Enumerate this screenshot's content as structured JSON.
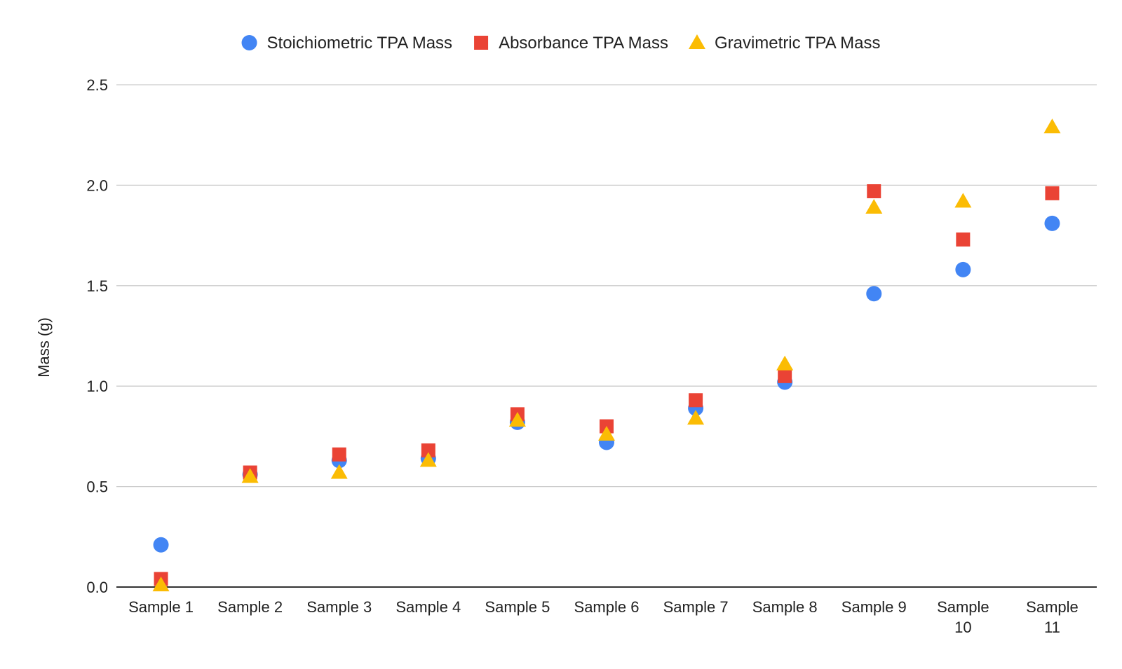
{
  "chart_data": {
    "type": "scatter",
    "title": "",
    "xlabel": "",
    "ylabel": "Mass (g)",
    "categories": [
      "Sample 1",
      "Sample 2",
      "Sample 3",
      "Sample 4",
      "Sample 5",
      "Sample 6",
      "Sample 7",
      "Sample 8",
      "Sample 9",
      "Sample 10",
      "Sample 11"
    ],
    "ylim": [
      0,
      2.5
    ],
    "yticks": [
      "0.0",
      "0.5",
      "1.0",
      "1.5",
      "2.0",
      "2.5"
    ],
    "grid": true,
    "legend_position": "top-center",
    "series": [
      {
        "name": "Stoichiometric TPA Mass",
        "marker": "circle",
        "color": "#4285F4",
        "values": [
          0.21,
          0.56,
          0.63,
          0.64,
          0.82,
          0.72,
          0.89,
          1.02,
          1.46,
          1.58,
          1.81
        ]
      },
      {
        "name": "Absorbance TPA Mass",
        "marker": "square",
        "color": "#EA4335",
        "values": [
          0.04,
          0.57,
          0.66,
          0.68,
          0.86,
          0.8,
          0.93,
          1.05,
          1.97,
          1.73,
          1.96
        ]
      },
      {
        "name": "Gravimetric TPA Mass",
        "marker": "triangle",
        "color": "#FBBC04",
        "values": [
          0.01,
          0.55,
          0.57,
          0.63,
          0.83,
          0.76,
          0.84,
          1.11,
          1.89,
          1.92,
          2.29
        ]
      }
    ]
  }
}
